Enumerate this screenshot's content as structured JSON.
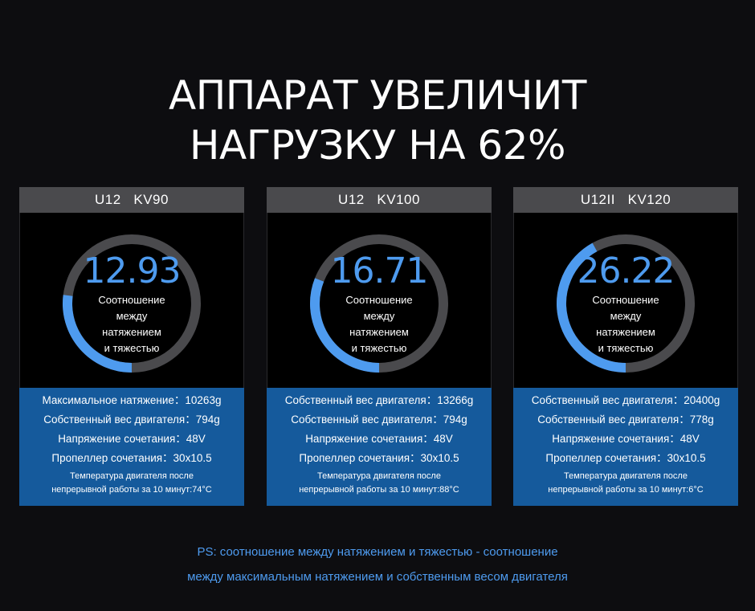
{
  "headline": {
    "line1": "АППАРАТ УВЕЛИЧИТ",
    "line2": "НАГРУЗКУ НА 62%"
  },
  "colors": {
    "background": "#0d0d10",
    "card_header": "#4a4a4d",
    "stats_panel": "#155a9c",
    "accent_blue": "#4e9bef",
    "ring_track": "#4a4a4d"
  },
  "cards": [
    {
      "title": "U12   KV90",
      "ratio": "12.93",
      "ratio_fraction": 0.27,
      "label_lines": [
        "Соотношение",
        "между",
        "натяжением",
        "и тяжестью"
      ],
      "stats": [
        "Максимальное натяжение：10263g",
        "Собственный вес двигателя：794g",
        "Напряжение сочетания：48V",
        "Пропеллер сочетания：30x10.5"
      ],
      "note_lines": [
        "Температура двигателя после",
        "непрерывной работы за 10 минут:74°C"
      ]
    },
    {
      "title": "U12   KV100",
      "ratio": "16.71",
      "ratio_fraction": 0.31,
      "label_lines": [
        "Соотношение",
        "между",
        "натяжением",
        "и тяжестью"
      ],
      "stats": [
        "Собственный вес двигателя：13266g",
        "Собственный вес двигателя：794g",
        "Напряжение сочетания：48V",
        "Пропеллер сочетания：30x10.5"
      ],
      "note_lines": [
        "Температура двигателя после",
        "непрерывной работы за 10 минут:88°C"
      ]
    },
    {
      "title": "U12II   KV120",
      "ratio": "26.22",
      "ratio_fraction": 0.42,
      "label_lines": [
        "Соотношение",
        "между",
        "натяжением",
        "и тяжестью"
      ],
      "stats": [
        "Собственный вес двигателя：20400g",
        "Собственный вес двигателя：778g",
        "Напряжение сочетания：48V",
        "Пропеллер сочетания：30x10.5"
      ],
      "note_lines": [
        "Температура двигателя после",
        "непрерывной работы за 10 минут:6°C"
      ]
    }
  ],
  "ps": {
    "line1": "PS: соотношение между натяжением и тяжестью - соотношение",
    "line2": "между максимальным натяжением и  собственным весом двигателя"
  }
}
